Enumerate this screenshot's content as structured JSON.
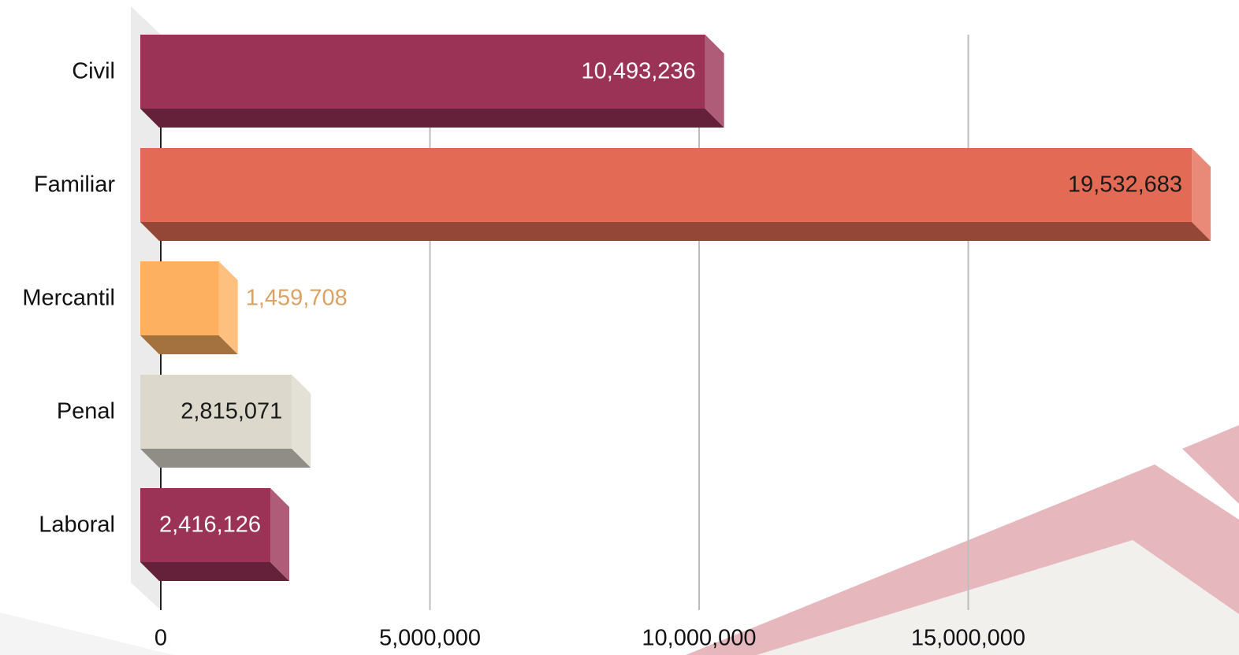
{
  "chart_data": {
    "type": "bar3d_horizontal",
    "categories": [
      "Civil",
      "Familiar",
      "Mercantil",
      "Penal",
      "Laboral"
    ],
    "values": [
      10493236,
      19532683,
      1459708,
      2815071,
      2416126
    ],
    "value_labels": [
      "10,493,236",
      "19,532,683",
      "1,459,708",
      "2,815,071",
      "2,416,126"
    ],
    "colors": [
      "#9b3357",
      "#e36b55",
      "#fdb05f",
      "#dcd9cc",
      "#9b3357"
    ],
    "xlim": [
      0,
      20000000
    ],
    "xticks": [
      0,
      {
        "value": 5000000,
        "label": "5,000,000"
      },
      {
        "value": 10000000,
        "label": "10,000,000"
      },
      {
        "value": 15000000,
        "label": "15,000,000"
      }
    ],
    "grid": true
  }
}
